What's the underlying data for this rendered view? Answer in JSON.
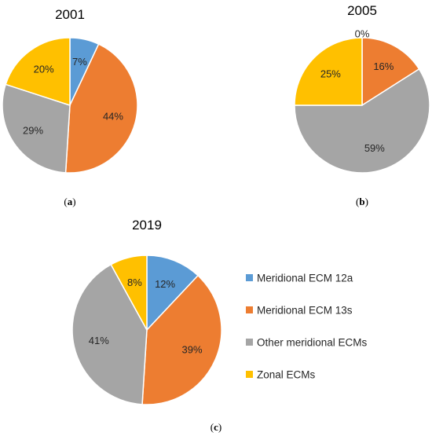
{
  "colors": {
    "Meridional ECM 12a": "#5B9BD5",
    "Meridional ECM 13s": "#ED7D31",
    "Other meridional ECMs": "#A5A5A5",
    "Zonal ECMs": "#FFC000"
  },
  "legend": {
    "entries": [
      "Meridional ECM 12a",
      "Meridional ECM 13s",
      "Other meridional ECMs",
      "Zonal ECMs"
    ],
    "placement": "right of chart (c)"
  },
  "panel_labels": [
    "(a)",
    "(b)",
    "(c)"
  ],
  "chart_data": [
    {
      "type": "pie",
      "title": "2001",
      "panel": "(a)",
      "series": [
        {
          "name": "Meridional ECM 12a",
          "value": 7,
          "label": "7%"
        },
        {
          "name": "Meridional ECM 13s",
          "value": 44,
          "label": "44%"
        },
        {
          "name": "Other meridional ECMs",
          "value": 29,
          "label": "29%"
        },
        {
          "name": "Zonal ECMs",
          "value": 20,
          "label": "20%"
        }
      ]
    },
    {
      "type": "pie",
      "title": "2005",
      "panel": "(b)",
      "series": [
        {
          "name": "Meridional ECM 12a",
          "value": 0,
          "label": "0%"
        },
        {
          "name": "Meridional ECM 13s",
          "value": 16,
          "label": "16%"
        },
        {
          "name": "Other meridional ECMs",
          "value": 59,
          "label": "59%"
        },
        {
          "name": "Zonal ECMs",
          "value": 25,
          "label": "25%"
        }
      ]
    },
    {
      "type": "pie",
      "title": "2019",
      "panel": "(c)",
      "series": [
        {
          "name": "Meridional ECM 12a",
          "value": 12,
          "label": "12%"
        },
        {
          "name": "Meridional ECM 13s",
          "value": 39,
          "label": "39%"
        },
        {
          "name": "Other meridional ECMs",
          "value": 41,
          "label": "41%"
        },
        {
          "name": "Zonal ECMs",
          "value": 8,
          "label": "8%"
        }
      ]
    }
  ]
}
